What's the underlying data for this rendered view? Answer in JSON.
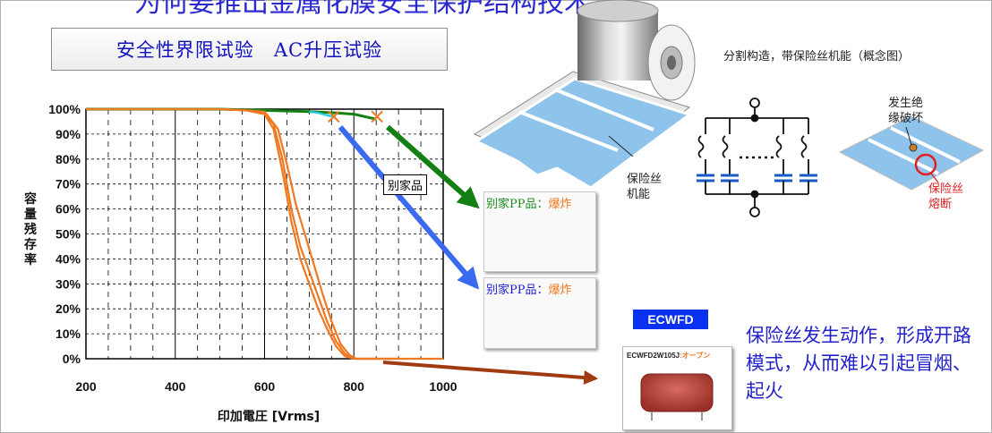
{
  "header": {
    "top_title": "为何要推出金属化膜安全保护结构技术",
    "title_box": "安全性界限试验　AC升压试验",
    "concept_caption": "分割构造，带保险丝机能（概念图）"
  },
  "labels": {
    "fuse_function": [
      "保险丝",
      "机能"
    ],
    "breakdown": [
      "发生绝",
      "缘破坏"
    ],
    "fuse_blown": [
      "保险丝",
      "熔断"
    ],
    "other_company": "别家品"
  },
  "photos": [
    {
      "prefix": "别家PP品：",
      "result": "爆炸",
      "prefix_color": "#1c8a1c"
    },
    {
      "prefix": "别家PP品：",
      "result": "爆炸",
      "prefix_color": "#1a1ad0"
    }
  ],
  "ecwfd": {
    "badge": "ECWFD",
    "part_label": "ECWFD2W105J",
    "part_status": ":オープン"
  },
  "fuse_description": "保险丝发生动作，形成开路模式，从而难以引起冒烟、起火",
  "colors": {
    "green": "#148014",
    "orange": "#f07820",
    "blue": "#3a6af0",
    "brown": "#a03a10",
    "cyan": "#20d0e0",
    "film_blue": "#8ec3ec"
  },
  "chart_data": {
    "type": "line",
    "title": "",
    "xlabel": "印加電圧 [Vrms]",
    "ylabel": "容量残存率",
    "xlim": [
      200,
      1000
    ],
    "ylim": [
      0,
      100
    ],
    "xticks": [
      200,
      400,
      600,
      800,
      1000
    ],
    "yticks": [
      0,
      10,
      20,
      30,
      40,
      50,
      60,
      70,
      80,
      90,
      100
    ],
    "grid": true,
    "series": [
      {
        "color": "#148014",
        "x": [
          200,
          300,
          400,
          500,
          600,
          700,
          760,
          800,
          850
        ],
        "y": [
          100,
          100,
          100,
          100,
          99.5,
          99,
          98.5,
          98,
          96
        ]
      },
      {
        "color": "#20d0e0",
        "x": [
          700,
          720,
          740,
          755
        ],
        "y": [
          99,
          98.5,
          97.5,
          97
        ]
      },
      {
        "color": "#f07820",
        "x": [
          200,
          400,
          500,
          560,
          600,
          620,
          640,
          660,
          680,
          700,
          720,
          740,
          760,
          780,
          800,
          830,
          900,
          1000
        ],
        "y": [
          100,
          100,
          100,
          99.5,
          98,
          94,
          80,
          60,
          45,
          35,
          25,
          15,
          7,
          2,
          0,
          0,
          0,
          0
        ]
      },
      {
        "color": "#f07820",
        "x": [
          500,
          560,
          600,
          620,
          640,
          660,
          680,
          700,
          720,
          740,
          760,
          780,
          800,
          830,
          900
        ],
        "y": [
          100,
          99.5,
          98,
          92,
          75,
          55,
          40,
          30,
          20,
          12,
          5,
          1,
          0,
          0,
          0
        ]
      },
      {
        "color": "#f07820",
        "x": [
          500,
          560,
          600,
          630,
          650,
          670,
          690,
          710,
          730,
          750,
          770,
          790,
          805,
          830,
          860
        ],
        "y": [
          100,
          99.5,
          99,
          92,
          78,
          62,
          50,
          38,
          26,
          15,
          6,
          1.5,
          0,
          0,
          0
        ]
      }
    ],
    "markers": [
      {
        "x": 755,
        "y": 97,
        "symbol": "x",
        "color": "#f07820"
      },
      {
        "x": 852,
        "y": 97,
        "symbol": "x",
        "color": "#f07820"
      }
    ]
  }
}
